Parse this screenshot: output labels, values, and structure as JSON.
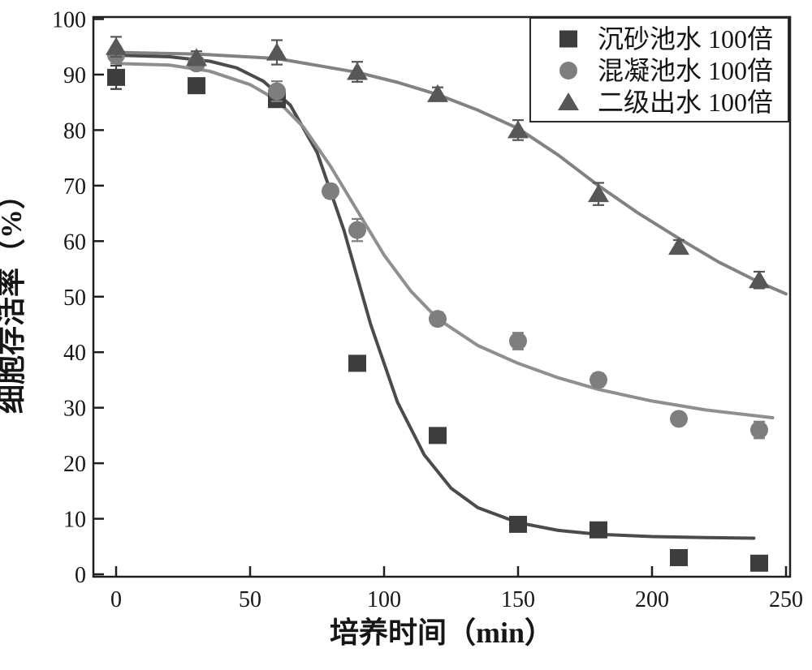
{
  "chart_data": {
    "type": "scatter",
    "title": "",
    "xlabel": "培养时间（min）",
    "ylabel": "细胞存活率（%）",
    "xlim": [
      0,
      250
    ],
    "ylim": [
      0,
      100
    ],
    "x_ticks": [
      0,
      50,
      100,
      150,
      200,
      250
    ],
    "y_ticks": [
      0,
      10,
      20,
      30,
      40,
      50,
      60,
      70,
      80,
      90,
      100
    ],
    "grid": "off",
    "legend_position": "top-right-inside",
    "axis_color": "#1f1f1f",
    "series": [
      {
        "name": "沉砂池水 100倍",
        "marker": "square",
        "marker_color": "#3d3d3d",
        "line_color": "#4b4b4b",
        "points": [
          {
            "x": 0,
            "y": 89.5,
            "err": 2.1
          },
          {
            "x": 30,
            "y": 88,
            "err": 1.0
          },
          {
            "x": 60,
            "y": 85.5,
            "err": 1.0
          },
          {
            "x": 90,
            "y": 38,
            "err": 1.0
          },
          {
            "x": 120,
            "y": 25,
            "err": 0.8
          },
          {
            "x": 150,
            "y": 9,
            "err": 0.9
          },
          {
            "x": 180,
            "y": 8,
            "err": 0.8
          },
          {
            "x": 210,
            "y": 3,
            "err": 0.7
          },
          {
            "x": 240,
            "y": 2,
            "err": 1.2
          }
        ],
        "fit_line": [
          [
            0,
            93.5
          ],
          [
            20,
            93.2
          ],
          [
            35,
            92.4
          ],
          [
            45,
            91.2
          ],
          [
            55,
            88.8
          ],
          [
            65,
            84.5
          ],
          [
            75,
            76
          ],
          [
            85,
            62
          ],
          [
            95,
            45
          ],
          [
            105,
            31
          ],
          [
            115,
            21.5
          ],
          [
            125,
            15.5
          ],
          [
            135,
            12
          ],
          [
            150,
            9.3
          ],
          [
            165,
            7.9
          ],
          [
            180,
            7.2
          ],
          [
            200,
            6.8
          ],
          [
            220,
            6.6
          ],
          [
            238,
            6.5
          ]
        ]
      },
      {
        "name": "混凝池水 100倍",
        "marker": "circle",
        "marker_color": "#7e7e7e",
        "line_color": "#8f8f8f",
        "points": [
          {
            "x": 0,
            "y": 93.5,
            "err": 1.5
          },
          {
            "x": 30,
            "y": 92,
            "err": 1.0
          },
          {
            "x": 60,
            "y": 87,
            "err": 1.8
          },
          {
            "x": 80,
            "y": 69,
            "err": 1.2
          },
          {
            "x": 90,
            "y": 62,
            "err": 2.0
          },
          {
            "x": 120,
            "y": 46,
            "err": 1.2
          },
          {
            "x": 150,
            "y": 42,
            "err": 1.5
          },
          {
            "x": 180,
            "y": 35,
            "err": 1.2
          },
          {
            "x": 210,
            "y": 28,
            "err": 1.0
          },
          {
            "x": 240,
            "y": 26,
            "err": 1.5
          }
        ],
        "fit_line": [
          [
            0,
            92
          ],
          [
            20,
            91.7
          ],
          [
            35,
            90.6
          ],
          [
            50,
            88.2
          ],
          [
            60,
            85.4
          ],
          [
            70,
            80.5
          ],
          [
            80,
            73.5
          ],
          [
            90,
            65.5
          ],
          [
            100,
            57.5
          ],
          [
            110,
            51
          ],
          [
            120,
            46
          ],
          [
            135,
            41.2
          ],
          [
            150,
            38
          ],
          [
            165,
            35.4
          ],
          [
            180,
            33.3
          ],
          [
            200,
            31.2
          ],
          [
            220,
            29.6
          ],
          [
            245,
            28.2
          ]
        ]
      },
      {
        "name": "二级出水 100倍",
        "marker": "triangle",
        "marker_color": "#575757",
        "line_color": "#828282",
        "points": [
          {
            "x": 0,
            "y": 95,
            "err": 1.8
          },
          {
            "x": 30,
            "y": 93,
            "err": 1.2
          },
          {
            "x": 60,
            "y": 94,
            "err": 2.2
          },
          {
            "x": 90,
            "y": 90.5,
            "err": 1.8
          },
          {
            "x": 120,
            "y": 86.5,
            "err": 1.2
          },
          {
            "x": 150,
            "y": 80,
            "err": 1.8
          },
          {
            "x": 180,
            "y": 68.5,
            "err": 2.0
          },
          {
            "x": 210,
            "y": 59,
            "err": 1.2
          },
          {
            "x": 240,
            "y": 53,
            "err": 1.5
          }
        ],
        "fit_line": [
          [
            0,
            94
          ],
          [
            30,
            93.7
          ],
          [
            60,
            92.9
          ],
          [
            90,
            90.4
          ],
          [
            105,
            88.6
          ],
          [
            120,
            86.4
          ],
          [
            135,
            83.6
          ],
          [
            150,
            80.3
          ],
          [
            165,
            75.5
          ],
          [
            180,
            70
          ],
          [
            195,
            65
          ],
          [
            210,
            60.5
          ],
          [
            225,
            56.2
          ],
          [
            240,
            52.6
          ],
          [
            250,
            50.5
          ]
        ]
      }
    ]
  }
}
